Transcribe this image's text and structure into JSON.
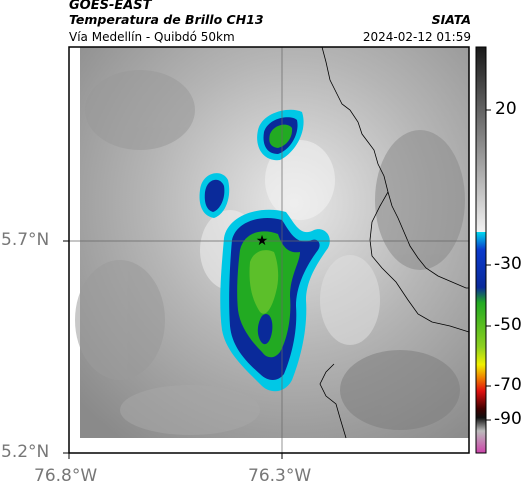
{
  "header": {
    "satellite": "GOES-EAST",
    "product": "Temperatura de Brillo CH13",
    "region": "Vía Medellín - Quibdó 50km",
    "organization": "SIATA",
    "datetime": "2024-02-12 01:59"
  },
  "axes": {
    "lat_labels": [
      "5.7°N",
      "5.2°N"
    ],
    "lon_labels": [
      "76.8°W",
      "76.3°W"
    ]
  },
  "colorbar": {
    "labels": [
      "20",
      "-30",
      "-50",
      "-70",
      "-90"
    ],
    "colors": {
      "gray_top": "#1a1a1a",
      "gray_bottom": "#f2f2f2",
      "cyan": "#00c8e6",
      "blue": "#0a2a9a",
      "green": "#22aa22",
      "yellow": "#f0f000",
      "red": "#e01010",
      "black": "#101010",
      "magenta": "#cc44aa"
    }
  },
  "map": {
    "marker": "star-icon",
    "border_color": "#000000"
  }
}
